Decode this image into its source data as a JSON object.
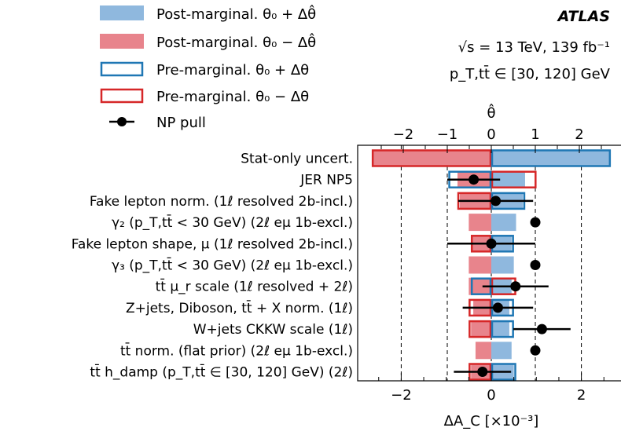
{
  "chart_data": {
    "type": "bar",
    "experiment": "ATLAS",
    "energy_label": "√s = 13 TeV, 139 fb⁻¹",
    "region_label": "p_T,tt̄ ∈ [30, 120] GeV",
    "top_axis_label": "θ̂",
    "bottom_axis_label": "ΔA_C [×10⁻³]",
    "bottom_xlim": [
      -3.0,
      3.0
    ],
    "top_xlim": [
      -2.8,
      2.8
    ],
    "bottom_ticks": [
      "−2",
      "0",
      "2"
    ],
    "bottom_tick_values": [
      -2,
      0,
      2
    ],
    "top_ticks": [
      "−2",
      "−1",
      "0",
      "1",
      "2"
    ],
    "top_tick_values": [
      -2,
      -1,
      0,
      1,
      2
    ],
    "legend": [
      {
        "key": "post_up",
        "label": "Post-marginal. θ₀ + Δθ̂",
        "color": "#8fb8de"
      },
      {
        "key": "post_down",
        "label": "Post-marginal. θ₀ − Δθ̂",
        "color": "#e8848c"
      },
      {
        "key": "pre_up",
        "label": "Pre-marginal. θ₀ + Δθ",
        "color": "#1f77b4"
      },
      {
        "key": "pre_down",
        "label": "Pre-marginal. θ₀ − Δθ",
        "color": "#d62728"
      },
      {
        "key": "pull",
        "label": "NP pull",
        "color": "#000000"
      }
    ],
    "categories": [
      "Stat-only uncert.",
      "JER NP5",
      "Fake lepton norm. (1ℓ resolved 2b-incl.)",
      "γ₂ (p_T,tt̄ < 30 GeV) (2ℓ eμ 1b-excl.)",
      "Fake lepton shape, μ (1ℓ resolved 2b-incl.)",
      "γ₃ (p_T,tt̄ < 30 GeV) (2ℓ eμ 1b-excl.)",
      "tt̄ μ_r scale (1ℓ resolved + 2ℓ)",
      "Z+jets, Diboson, tt̄ + X norm. (1ℓ)",
      "W+jets CKKW scale (1ℓ)",
      "tt̄ norm. (flat prior) (2ℓ eμ 1b-excl.)",
      "tt̄ h_damp (p_T,tt̄ ∈ [30, 120] GeV) (2ℓ)"
    ],
    "post_up": [
      2.65,
      0.75,
      0.7,
      0.55,
      0.45,
      0.5,
      0.45,
      0.4,
      0.4,
      0.45,
      0.5
    ],
    "post_down": [
      -2.65,
      -0.75,
      -0.7,
      -0.5,
      -0.45,
      -0.5,
      -0.5,
      -0.4,
      -0.45,
      -0.35,
      -0.45
    ],
    "pre_up": [
      2.65,
      -0.95,
      0.75,
      null,
      0.5,
      null,
      -0.45,
      0.5,
      0.5,
      null,
      0.55
    ],
    "pre_down": [
      -2.65,
      1.0,
      -0.75,
      null,
      -0.45,
      null,
      0.55,
      -0.5,
      -0.5,
      null,
      -0.5
    ],
    "pull": [
      null,
      -0.4,
      0.1,
      1.0,
      0.0,
      1.0,
      0.55,
      0.15,
      1.15,
      1.0,
      -0.2
    ],
    "pull_err": [
      null,
      0.6,
      0.85,
      null,
      1.0,
      null,
      0.75,
      0.8,
      0.65,
      null,
      0.65
    ]
  }
}
